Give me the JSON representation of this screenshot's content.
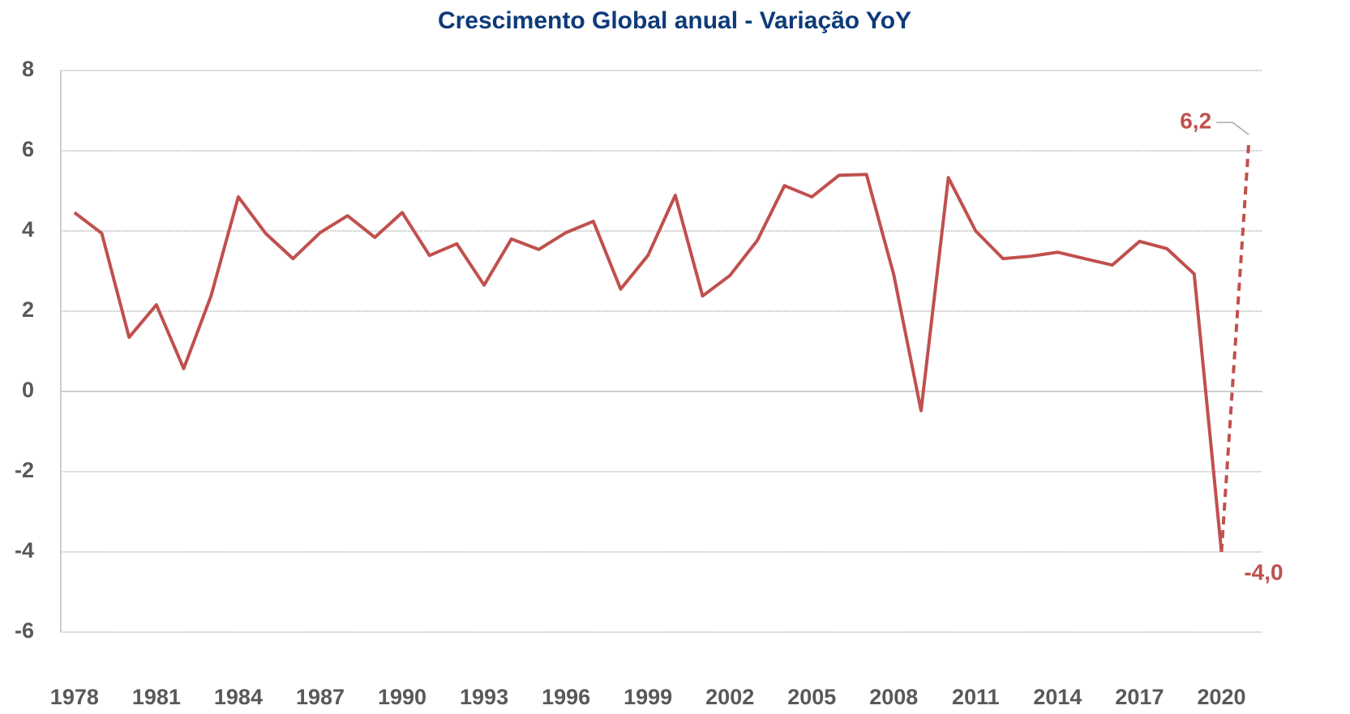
{
  "chart_data": {
    "type": "line",
    "title": "Crescimento Global anual  - Variação YoY",
    "x": [
      1978,
      1979,
      1980,
      1981,
      1982,
      1983,
      1984,
      1985,
      1986,
      1987,
      1988,
      1989,
      1990,
      1991,
      1992,
      1993,
      1994,
      1995,
      1996,
      1997,
      1998,
      1999,
      2000,
      2001,
      2002,
      2003,
      2004,
      2005,
      2006,
      2007,
      2008,
      2009,
      2010,
      2011,
      2012,
      2013,
      2014,
      2015,
      2016,
      2017,
      2018,
      2019,
      2020,
      2021
    ],
    "series": [
      {
        "name": "Crescimento Global",
        "color": "#c0504d",
        "values": [
          4.46,
          3.94,
          1.35,
          2.16,
          0.57,
          2.38,
          4.85,
          3.94,
          3.31,
          3.96,
          4.38,
          3.84,
          4.46,
          3.39,
          3.68,
          2.65,
          3.8,
          3.54,
          3.96,
          4.24,
          2.55,
          3.39,
          4.89,
          2.38,
          2.89,
          3.76,
          5.13,
          4.85,
          5.39,
          5.41,
          2.91,
          -0.48,
          5.33,
          4.0,
          3.31,
          3.37,
          3.47,
          3.31,
          3.15,
          3.74,
          3.56,
          2.93,
          -4.0,
          6.2
        ],
        "value_labels": [
          null,
          null,
          null,
          null,
          null,
          null,
          null,
          null,
          null,
          null,
          null,
          null,
          null,
          null,
          null,
          null,
          null,
          null,
          null,
          null,
          null,
          null,
          null,
          null,
          null,
          null,
          null,
          null,
          null,
          null,
          null,
          null,
          null,
          null,
          null,
          null,
          null,
          null,
          null,
          null,
          null,
          null,
          "-4,0",
          "6,2"
        ]
      }
    ],
    "dash_from_x": 2020,
    "xlim": [
      1977.5,
      2021.5
    ],
    "xticks": [
      1978,
      1981,
      1984,
      1987,
      1990,
      1993,
      1996,
      1999,
      2002,
      2005,
      2008,
      2011,
      2014,
      2017,
      2020
    ],
    "ylim": [
      -6,
      8
    ],
    "yticks": [
      -6,
      -4,
      -2,
      0,
      2,
      4,
      6,
      8
    ],
    "grid": true
  }
}
